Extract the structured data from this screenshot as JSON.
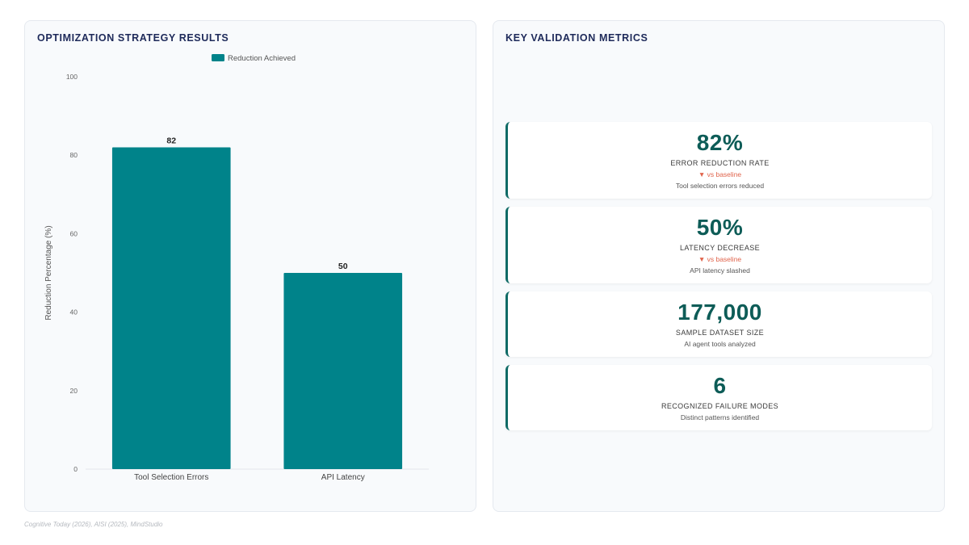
{
  "left_panel": {
    "title": "OPTIMIZATION STRATEGY RESULTS"
  },
  "right_panel": {
    "title": "KEY VALIDATION METRICS"
  },
  "chart_data": {
    "type": "bar",
    "categories": [
      "Tool Selection Errors",
      "API Latency"
    ],
    "series": [
      {
        "name": "Reduction Achieved",
        "values": [
          82,
          50
        ]
      }
    ],
    "data_labels": [
      "82",
      "50"
    ],
    "ylabel": "Reduction Percentage (%)",
    "xlabel": "",
    "ylim": [
      0,
      100
    ],
    "yticks": [
      0,
      20,
      40,
      60,
      80,
      100
    ],
    "legend_position": "top-center",
    "grid": false,
    "colors": {
      "bar": "#00838a"
    }
  },
  "metrics": [
    {
      "value": "82%",
      "label": "ERROR REDUCTION RATE",
      "trend": "▼ vs baseline",
      "desc": "Tool selection errors reduced"
    },
    {
      "value": "50%",
      "label": "LATENCY DECREASE",
      "trend": "▼ vs baseline",
      "desc": "API latency slashed"
    },
    {
      "value": "177,000",
      "label": "SAMPLE DATASET SIZE",
      "desc": "AI agent tools analyzed"
    },
    {
      "value": "6",
      "label": "RECOGNIZED FAILURE MODES",
      "desc": "Distinct patterns identified"
    }
  ],
  "footer": {
    "source": "Cognitive Today (2026), AISI (2025), MindStudio"
  },
  "colors": {
    "accent": "#0f6b66",
    "title": "#1e2a5a",
    "trend_down": "#e0644c"
  }
}
